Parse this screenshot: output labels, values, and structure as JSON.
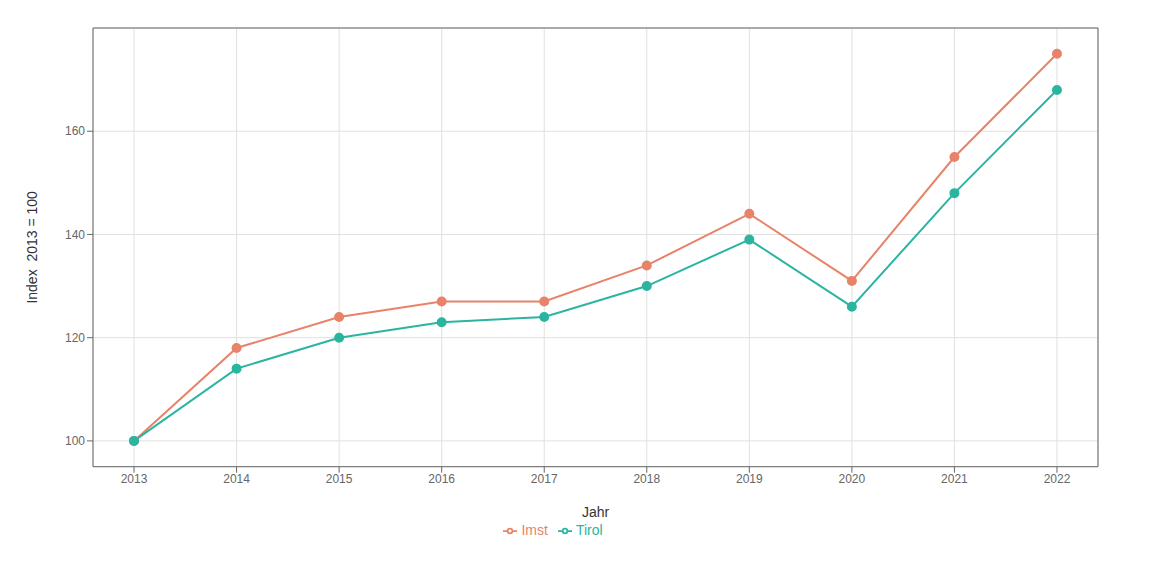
{
  "chart_data": {
    "type": "line",
    "x": [
      2013,
      2014,
      2015,
      2016,
      2017,
      2018,
      2019,
      2020,
      2021,
      2022
    ],
    "series": [
      {
        "name": "Imst",
        "color": "#E8836A",
        "marker": "circle",
        "values": [
          100,
          118,
          124,
          127,
          127,
          134,
          144,
          131,
          155,
          175
        ]
      },
      {
        "name": "Tirol",
        "color": "#2BB5A0",
        "marker": "circle",
        "values": [
          100,
          114,
          120,
          123,
          124,
          130,
          139,
          126,
          148,
          168
        ]
      }
    ],
    "xlabel": "Jahr",
    "ylabel": "Index  2013 = 100",
    "xlim": [
      2012.6,
      2022.4
    ],
    "xticks": [
      2013,
      2014,
      2015,
      2016,
      2017,
      2018,
      2019,
      2020,
      2021,
      2022
    ],
    "ylim": [
      95,
      180
    ],
    "yticks": [
      100,
      120,
      140,
      160
    ],
    "grid": true,
    "legend": "bottom"
  }
}
